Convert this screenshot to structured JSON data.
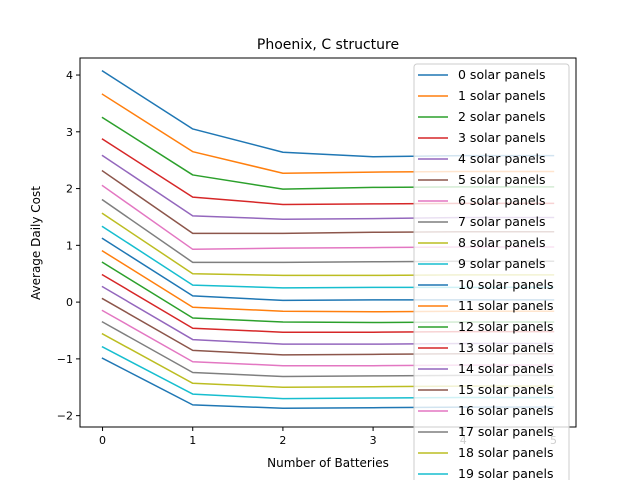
{
  "chart_data": {
    "type": "line",
    "title": "Phoenix, C structure",
    "xlabel": "Number of Batteries",
    "ylabel": "Average Daily Cost",
    "x": [
      0,
      1,
      2,
      3,
      4,
      5
    ],
    "xlim": [
      -0.25,
      5.25
    ],
    "ylim": [
      -2.2,
      4.3
    ],
    "xticks": [
      "0",
      "1",
      "2",
      "3",
      "4",
      "5"
    ],
    "yticks": [
      -2,
      -1,
      0,
      1,
      2,
      3,
      4
    ],
    "ytick_labels": [
      "−2",
      "−1",
      "0",
      "1",
      "2",
      "3",
      "4"
    ],
    "grid": false,
    "legend_position": "right",
    "series": [
      {
        "name": "0 solar panels",
        "color": "#1f77b4",
        "values": [
          4.07,
          3.05,
          2.64,
          2.56,
          2.58,
          2.58
        ]
      },
      {
        "name": "1 solar panels",
        "color": "#ff7f0e",
        "values": [
          3.66,
          2.65,
          2.27,
          2.29,
          2.3,
          2.3
        ]
      },
      {
        "name": "2 solar panels",
        "color": "#2ca02c",
        "values": [
          3.25,
          2.24,
          1.99,
          2.02,
          2.03,
          2.03
        ]
      },
      {
        "name": "3 solar panels",
        "color": "#d62728",
        "values": [
          2.87,
          1.85,
          1.72,
          1.73,
          1.74,
          1.74
        ]
      },
      {
        "name": "4 solar panels",
        "color": "#9467bd",
        "values": [
          2.58,
          1.52,
          1.46,
          1.47,
          1.49,
          1.49
        ]
      },
      {
        "name": "5 solar panels",
        "color": "#8c564b",
        "values": [
          2.31,
          1.21,
          1.21,
          1.23,
          1.24,
          1.24
        ]
      },
      {
        "name": "6 solar panels",
        "color": "#e377c2",
        "values": [
          2.05,
          0.93,
          0.95,
          0.96,
          0.97,
          0.97
        ]
      },
      {
        "name": "7 solar panels",
        "color": "#7f7f7f",
        "values": [
          1.8,
          0.7,
          0.7,
          0.71,
          0.72,
          0.72
        ]
      },
      {
        "name": "8 solar panels",
        "color": "#bcbd22",
        "values": [
          1.56,
          0.5,
          0.47,
          0.47,
          0.48,
          0.48
        ]
      },
      {
        "name": "9 solar panels",
        "color": "#17becf",
        "values": [
          1.33,
          0.3,
          0.25,
          0.26,
          0.26,
          0.26
        ]
      },
      {
        "name": "10 solar panels",
        "color": "#1f77b4",
        "values": [
          1.12,
          0.11,
          0.03,
          0.04,
          0.04,
          0.04
        ]
      },
      {
        "name": "11 solar panels",
        "color": "#ff7f0e",
        "values": [
          0.9,
          -0.09,
          -0.16,
          -0.17,
          -0.16,
          -0.16
        ]
      },
      {
        "name": "12 solar panels",
        "color": "#2ca02c",
        "values": [
          0.7,
          -0.28,
          -0.35,
          -0.36,
          -0.35,
          -0.35
        ]
      },
      {
        "name": "13 solar panels",
        "color": "#d62728",
        "values": [
          0.48,
          -0.46,
          -0.53,
          -0.53,
          -0.52,
          -0.52
        ]
      },
      {
        "name": "14 solar panels",
        "color": "#9467bd",
        "values": [
          0.27,
          -0.66,
          -0.74,
          -0.74,
          -0.73,
          -0.73
        ]
      },
      {
        "name": "15 solar panels",
        "color": "#8c564b",
        "values": [
          0.06,
          -0.85,
          -0.93,
          -0.92,
          -0.91,
          -0.91
        ]
      },
      {
        "name": "16 solar panels",
        "color": "#e377c2",
        "values": [
          -0.15,
          -1.05,
          -1.12,
          -1.12,
          -1.11,
          -1.11
        ]
      },
      {
        "name": "17 solar panels",
        "color": "#7f7f7f",
        "values": [
          -0.35,
          -1.24,
          -1.31,
          -1.3,
          -1.29,
          -1.29
        ]
      },
      {
        "name": "18 solar panels",
        "color": "#bcbd22",
        "values": [
          -0.56,
          -1.43,
          -1.5,
          -1.49,
          -1.48,
          -1.48
        ]
      },
      {
        "name": "19 solar panels",
        "color": "#17becf",
        "values": [
          -0.79,
          -1.62,
          -1.7,
          -1.69,
          -1.68,
          -1.68
        ]
      },
      {
        "name": "",
        "color": "#1f77b4",
        "values": [
          -0.99,
          -1.81,
          -1.87,
          -1.86,
          -1.85,
          -1.85
        ]
      }
    ]
  }
}
